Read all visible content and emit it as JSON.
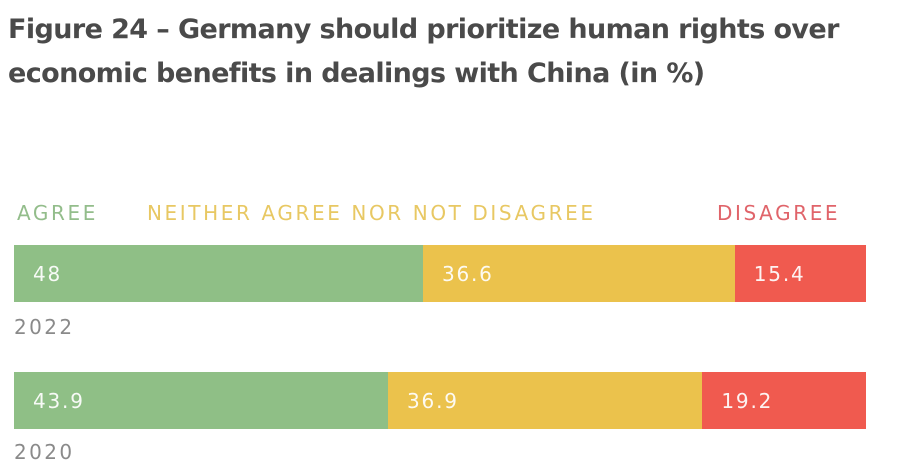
{
  "chart_data": {
    "type": "bar",
    "orientation": "horizontal",
    "stacked": true,
    "title": "Figure 24 – Germany should prioritize human rights over economic benefits in dealings with China (in %)",
    "xlabel": "",
    "ylabel": "",
    "xlim": [
      0,
      100
    ],
    "grid": false,
    "legend_position": "top",
    "categories": [
      "2022",
      "2020"
    ],
    "series": [
      {
        "name": "AGREE",
        "color": "#8fbf86",
        "legend_color": "#93bd8b",
        "values": [
          48,
          43.9
        ],
        "labels": [
          "48",
          "43.9"
        ]
      },
      {
        "name": "NEITHER AGREE NOR NOT DISAGREE",
        "color": "#ebc24c",
        "legend_color": "#e8c863",
        "values": [
          36.6,
          36.9
        ],
        "labels": [
          "36.6",
          "36.9"
        ]
      },
      {
        "name": "DISAGREE",
        "color": "#f05a4f",
        "legend_color": "#e0646a",
        "values": [
          15.4,
          19.2
        ],
        "labels": [
          "15.4",
          "19.2"
        ]
      }
    ]
  }
}
